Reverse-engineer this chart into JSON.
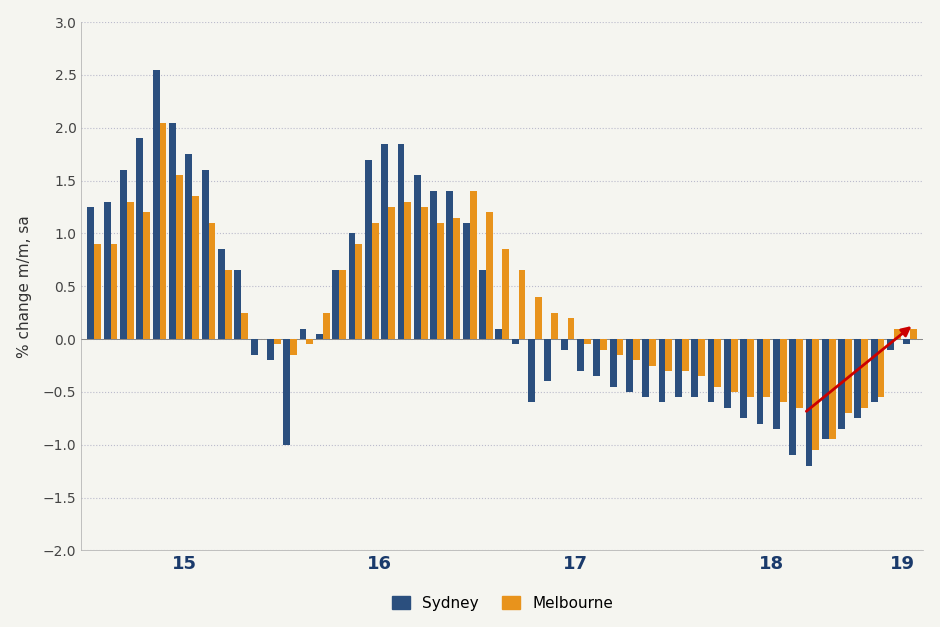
{
  "sydney": [
    1.25,
    1.3,
    1.6,
    1.9,
    2.55,
    2.05,
    1.75,
    1.6,
    0.85,
    0.65,
    -0.15,
    -0.2,
    -1.0,
    0.1,
    0.05,
    0.65,
    1.0,
    1.7,
    1.85,
    1.85,
    1.55,
    1.4,
    1.4,
    1.1,
    0.65,
    0.1,
    -0.05,
    -0.6,
    -0.4,
    -0.1,
    -0.3,
    -0.35,
    -0.45,
    -0.5,
    -0.55,
    -0.6,
    -0.55,
    -0.55,
    -0.6,
    -0.65,
    -0.75,
    -0.8,
    -0.85,
    -1.1,
    -1.2,
    -0.95,
    -0.85,
    -0.75,
    -0.6,
    -0.1,
    -0.05
  ],
  "melbourne": [
    0.9,
    0.9,
    1.3,
    1.2,
    2.05,
    1.55,
    1.35,
    1.1,
    0.65,
    0.25,
    0.0,
    -0.05,
    -0.15,
    -0.05,
    0.25,
    0.65,
    0.9,
    1.1,
    1.25,
    1.3,
    1.25,
    1.1,
    1.15,
    1.4,
    1.2,
    0.85,
    0.65,
    0.4,
    0.25,
    0.2,
    -0.05,
    -0.1,
    -0.15,
    -0.2,
    -0.25,
    -0.3,
    -0.3,
    -0.35,
    -0.45,
    -0.5,
    -0.55,
    -0.55,
    -0.6,
    -0.65,
    -1.05,
    -0.95,
    -0.7,
    -0.65,
    -0.55,
    0.1,
    0.1
  ],
  "sydney_color": "#2B4F7E",
  "melbourne_color": "#E8931C",
  "background_color": "#F5F5F0",
  "ylabel": "% change m/m, sa",
  "ylim": [
    -2.0,
    3.0
  ],
  "yticks": [
    -2.0,
    -1.5,
    -1.0,
    -0.5,
    0.0,
    0.5,
    1.0,
    1.5,
    2.0,
    2.5,
    3.0
  ],
  "year_centers": [
    5.5,
    17.5,
    29.5,
    41.5,
    49.5
  ],
  "xtick_labels": [
    "15",
    "16",
    "17",
    "18",
    "19"
  ],
  "arrow_color": "#CC0000",
  "n_bars": 51
}
